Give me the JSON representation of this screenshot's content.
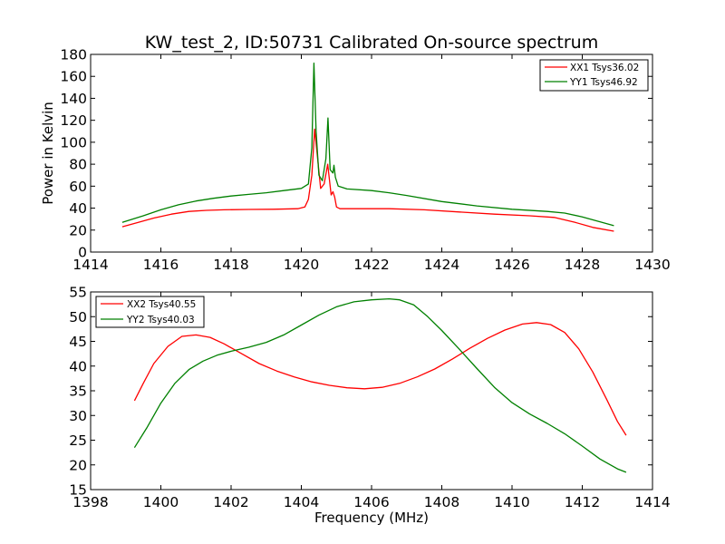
{
  "chart_data": [
    {
      "type": "line",
      "title": "KW_test_2, ID:50731 Calibrated On-source spectrum",
      "xlabel": "",
      "ylabel": "Power in Kelvin",
      "xlim": [
        1414,
        1430
      ],
      "ylim": [
        0,
        180
      ],
      "xticks": [
        1414,
        1416,
        1418,
        1420,
        1422,
        1424,
        1426,
        1428,
        1430
      ],
      "yticks": [
        0,
        20,
        40,
        60,
        80,
        100,
        120,
        140,
        160,
        180
      ],
      "grid": false,
      "legend": "top-right",
      "series": [
        {
          "name": "XX1 Tsys36.02",
          "color": "#ff0000",
          "x": [
            1414.9,
            1415.3,
            1415.8,
            1416.3,
            1416.8,
            1417.3,
            1417.8,
            1418.5,
            1419.2,
            1419.9,
            1420.1,
            1420.2,
            1420.3,
            1420.38,
            1420.45,
            1420.55,
            1420.65,
            1420.75,
            1420.85,
            1420.9,
            1420.95,
            1421.0,
            1421.1,
            1421.5,
            1422.5,
            1423.5,
            1424.5,
            1425.5,
            1426.5,
            1427.2,
            1427.8,
            1428.3,
            1428.9
          ],
          "y": [
            23,
            26.5,
            31,
            34.5,
            37,
            38,
            38.5,
            38.8,
            39,
            39.5,
            41,
            48,
            70,
            112,
            90,
            58,
            62,
            80,
            52,
            55,
            50,
            41,
            39.5,
            39.5,
            39.5,
            38.5,
            36.5,
            34.5,
            33,
            31.5,
            27,
            22.5,
            19
          ]
        },
        {
          "name": "YY1 Tsys46.92",
          "color": "#008000",
          "x": [
            1414.9,
            1415.5,
            1416.0,
            1416.5,
            1417.0,
            1417.5,
            1418.0,
            1418.5,
            1419.0,
            1419.5,
            1420.0,
            1420.2,
            1420.3,
            1420.36,
            1420.42,
            1420.5,
            1420.6,
            1420.7,
            1420.76,
            1420.82,
            1420.9,
            1420.93,
            1420.97,
            1421.05,
            1421.3,
            1422.0,
            1422.5,
            1423.0,
            1424.0,
            1425.0,
            1426.0,
            1427.0,
            1427.5,
            1428.0,
            1428.9
          ],
          "y": [
            27,
            33,
            38.5,
            43,
            46.5,
            49,
            51,
            52.5,
            54,
            56,
            58,
            62,
            95,
            172,
            110,
            70,
            65,
            85,
            122,
            75,
            72,
            79,
            68,
            60,
            57.5,
            56,
            54,
            51.5,
            46,
            42,
            39,
            37,
            35.5,
            32,
            24
          ]
        }
      ]
    },
    {
      "type": "line",
      "title": "",
      "xlabel": "Frequency (MHz)",
      "ylabel": "",
      "xlim": [
        1398,
        1414
      ],
      "ylim": [
        15,
        55
      ],
      "xticks": [
        1398,
        1400,
        1402,
        1404,
        1406,
        1408,
        1410,
        1412,
        1414
      ],
      "yticks": [
        15,
        20,
        25,
        30,
        35,
        40,
        45,
        50,
        55
      ],
      "grid": false,
      "legend": "top-left",
      "series": [
        {
          "name": "XX2 Tsys40.55",
          "color": "#ff0000",
          "x": [
            1399.25,
            1399.5,
            1399.8,
            1400.2,
            1400.6,
            1401.0,
            1401.4,
            1401.8,
            1402.3,
            1402.8,
            1403.3,
            1403.8,
            1404.3,
            1404.8,
            1405.3,
            1405.8,
            1406.3,
            1406.8,
            1407.3,
            1407.8,
            1408.3,
            1408.8,
            1409.3,
            1409.8,
            1410.3,
            1410.7,
            1411.1,
            1411.5,
            1411.9,
            1412.3,
            1412.7,
            1413.0,
            1413.25
          ],
          "y": [
            33,
            36.5,
            40.5,
            44,
            46,
            46.3,
            45.8,
            44.5,
            42.5,
            40.5,
            39,
            37.8,
            36.8,
            36.1,
            35.6,
            35.4,
            35.7,
            36.5,
            37.8,
            39.4,
            41.4,
            43.6,
            45.6,
            47.3,
            48.5,
            48.8,
            48.4,
            46.8,
            43.5,
            38.8,
            33.2,
            28.8,
            26
          ]
        },
        {
          "name": "YY2 Tsys40.03",
          "color": "#008000",
          "x": [
            1399.25,
            1399.6,
            1400.0,
            1400.4,
            1400.8,
            1401.2,
            1401.6,
            1402.0,
            1402.5,
            1403.0,
            1403.5,
            1404.0,
            1404.5,
            1405.0,
            1405.5,
            1406.0,
            1406.5,
            1406.8,
            1407.2,
            1407.6,
            1408.0,
            1408.5,
            1409.0,
            1409.5,
            1410.0,
            1410.5,
            1411.0,
            1411.5,
            1412.0,
            1412.5,
            1413.0,
            1413.25
          ],
          "y": [
            23.5,
            27.5,
            32.5,
            36.5,
            39.3,
            41,
            42.2,
            43,
            43.8,
            44.8,
            46.3,
            48.3,
            50.3,
            52,
            53,
            53.4,
            53.6,
            53.4,
            52.4,
            50,
            47.2,
            43.4,
            39.5,
            35.7,
            32.6,
            30.3,
            28.4,
            26.3,
            23.8,
            21.2,
            19.2,
            18.5
          ]
        }
      ]
    }
  ]
}
